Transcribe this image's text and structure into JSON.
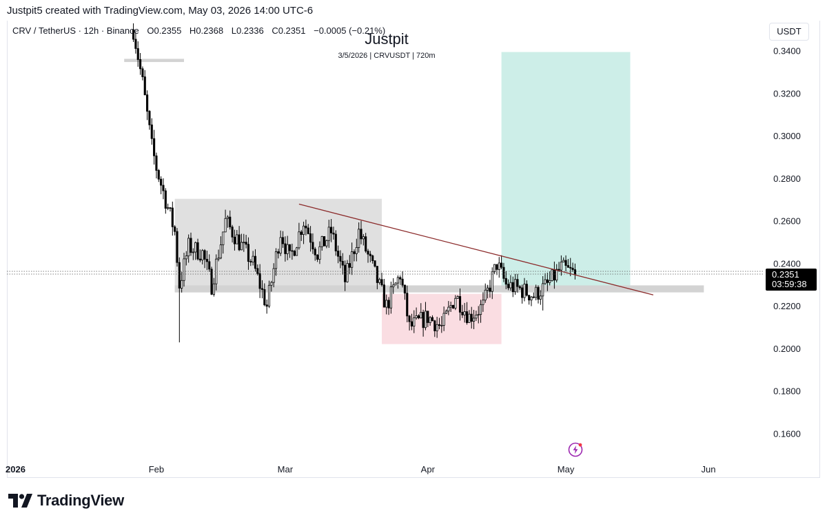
{
  "header": {
    "author_line": "Justpit5 created with TradingView.com, May 03, 2026 14:00 UTC-6"
  },
  "legend": {
    "symbol": "CRV / TetherUS · 12h · Binance",
    "open_label": "O",
    "open": "0.2355",
    "high_label": "H",
    "high": "0.2368",
    "low_label": "L",
    "low": "0.2336",
    "close_label": "C",
    "close": "0.2351",
    "change": "−0.0005 (−0.21%)"
  },
  "watermark": {
    "title": "Justpit",
    "subtitle": "3/5/2026 | CRVUSDT | 720m"
  },
  "currency_button": "USDT",
  "price_tag": {
    "price": "0.2351",
    "countdown": "03:59:38"
  },
  "brand": {
    "name": "TradingView"
  },
  "colors": {
    "up_body": "#ffffff",
    "down_body": "#000000",
    "wick": "#000000",
    "range_box": "#e0e0e0",
    "support_bar": "#d3d3d3",
    "demand_box": "#fadde2",
    "target_box": "#cdeee8",
    "trendline": "#8b2a2a",
    "price_tag_bg": "#000000"
  },
  "chart_data": {
    "type": "candlestick",
    "title": "CRV / TetherUS · 12h · Binance",
    "ylim": [
      0.151,
      0.352
    ],
    "y_ticks": [
      "0.3400",
      "0.3200",
      "0.3000",
      "0.2800",
      "0.2600",
      "0.2400",
      "0.2200",
      "0.2000",
      "0.1800",
      "0.1600"
    ],
    "x_ticks": [
      {
        "label": "2026",
        "date": "2026-01-01"
      },
      {
        "label": "Feb",
        "date": "2026-02-01"
      },
      {
        "label": "Mar",
        "date": "2026-03-01"
      },
      {
        "label": "Apr",
        "date": "2026-04-01"
      },
      {
        "label": "May",
        "date": "2026-05-01"
      },
      {
        "label": "Jun",
        "date": "2026-06-01"
      }
    ],
    "x_range": [
      "2026-01-01",
      "2026-06-30"
    ],
    "last_price": 0.2351,
    "candle_anchors": [
      {
        "date": "2026-01-27",
        "close": 0.35
      },
      {
        "date": "2026-01-29",
        "close": 0.325
      },
      {
        "date": "2026-01-31",
        "close": 0.295
      },
      {
        "date": "2026-02-01",
        "close": 0.285
      },
      {
        "date": "2026-02-03",
        "close": 0.27
      },
      {
        "date": "2026-02-05",
        "close": 0.255
      },
      {
        "date": "2026-02-06",
        "close": 0.23
      },
      {
        "date": "2026-02-08",
        "close": 0.248
      },
      {
        "date": "2026-02-11",
        "close": 0.245
      },
      {
        "date": "2026-02-13",
        "close": 0.23
      },
      {
        "date": "2026-02-16",
        "close": 0.26
      },
      {
        "date": "2026-02-19",
        "close": 0.25
      },
      {
        "date": "2026-02-22",
        "close": 0.24
      },
      {
        "date": "2026-02-25",
        "close": 0.22
      },
      {
        "date": "2026-02-28",
        "close": 0.255
      },
      {
        "date": "2026-03-02",
        "close": 0.242
      },
      {
        "date": "2026-03-05",
        "close": 0.26
      },
      {
        "date": "2026-03-08",
        "close": 0.245
      },
      {
        "date": "2026-03-11",
        "close": 0.255
      },
      {
        "date": "2026-03-14",
        "close": 0.232
      },
      {
        "date": "2026-03-17",
        "close": 0.255
      },
      {
        "date": "2026-03-20",
        "close": 0.238
      },
      {
        "date": "2026-03-23",
        "close": 0.22
      },
      {
        "date": "2026-03-26",
        "close": 0.235
      },
      {
        "date": "2026-03-28",
        "close": 0.21
      },
      {
        "date": "2026-04-01",
        "close": 0.215
      },
      {
        "date": "2026-04-04",
        "close": 0.21
      },
      {
        "date": "2026-04-07",
        "close": 0.225
      },
      {
        "date": "2026-04-10",
        "close": 0.215
      },
      {
        "date": "2026-04-13",
        "close": 0.22
      },
      {
        "date": "2026-04-16",
        "close": 0.24
      },
      {
        "date": "2026-04-18",
        "close": 0.23
      },
      {
        "date": "2026-04-21",
        "close": 0.228
      },
      {
        "date": "2026-04-24",
        "close": 0.225
      },
      {
        "date": "2026-04-27",
        "close": 0.23
      },
      {
        "date": "2026-04-30",
        "close": 0.238
      },
      {
        "date": "2026-05-03",
        "close": 0.2351
      }
    ],
    "extreme_wicks": [
      {
        "date": "2026-02-06",
        "low": 0.203
      },
      {
        "date": "2026-04-26",
        "low": 0.218
      }
    ],
    "drawings": {
      "support_bar": {
        "from": "2026-02-05",
        "to": "2026-05-31",
        "low": 0.2265,
        "high": 0.2298
      },
      "top_bar": {
        "from": "2026-01-25",
        "to": "2026-02-07",
        "low": 0.3348,
        "high": 0.3363
      },
      "range_box": {
        "from": "2026-02-05",
        "to": "2026-03-22",
        "low": 0.2265,
        "high": 0.2705
      },
      "demand_box": {
        "from": "2026-03-22",
        "to": "2026-04-17",
        "low": 0.2022,
        "high": 0.2258
      },
      "target_box": {
        "from": "2026-04-17",
        "to": "2026-05-15",
        "low": 0.2265,
        "high": 0.3395
      },
      "trendline": {
        "from": {
          "date": "2026-03-04",
          "price": 0.268
        },
        "to": {
          "date": "2026-05-20",
          "price": 0.2253
        }
      }
    }
  }
}
